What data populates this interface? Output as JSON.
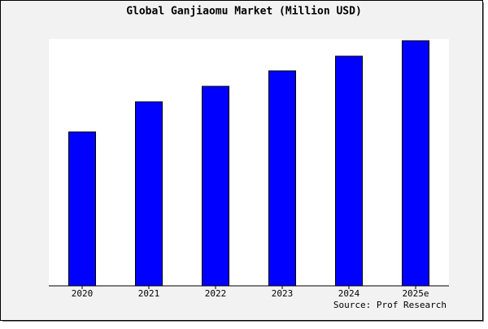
{
  "chart_data": {
    "type": "bar",
    "title": "Global Ganjiaomu Market (Million USD)",
    "categories": [
      "2020",
      "2021",
      "2022",
      "2023",
      "2024",
      "2025e"
    ],
    "values": [
      189,
      226,
      245,
      264,
      282,
      301
    ],
    "color": "#0000ff",
    "ylim": [
      0,
      303
    ],
    "source": "Source: Prof Research"
  }
}
